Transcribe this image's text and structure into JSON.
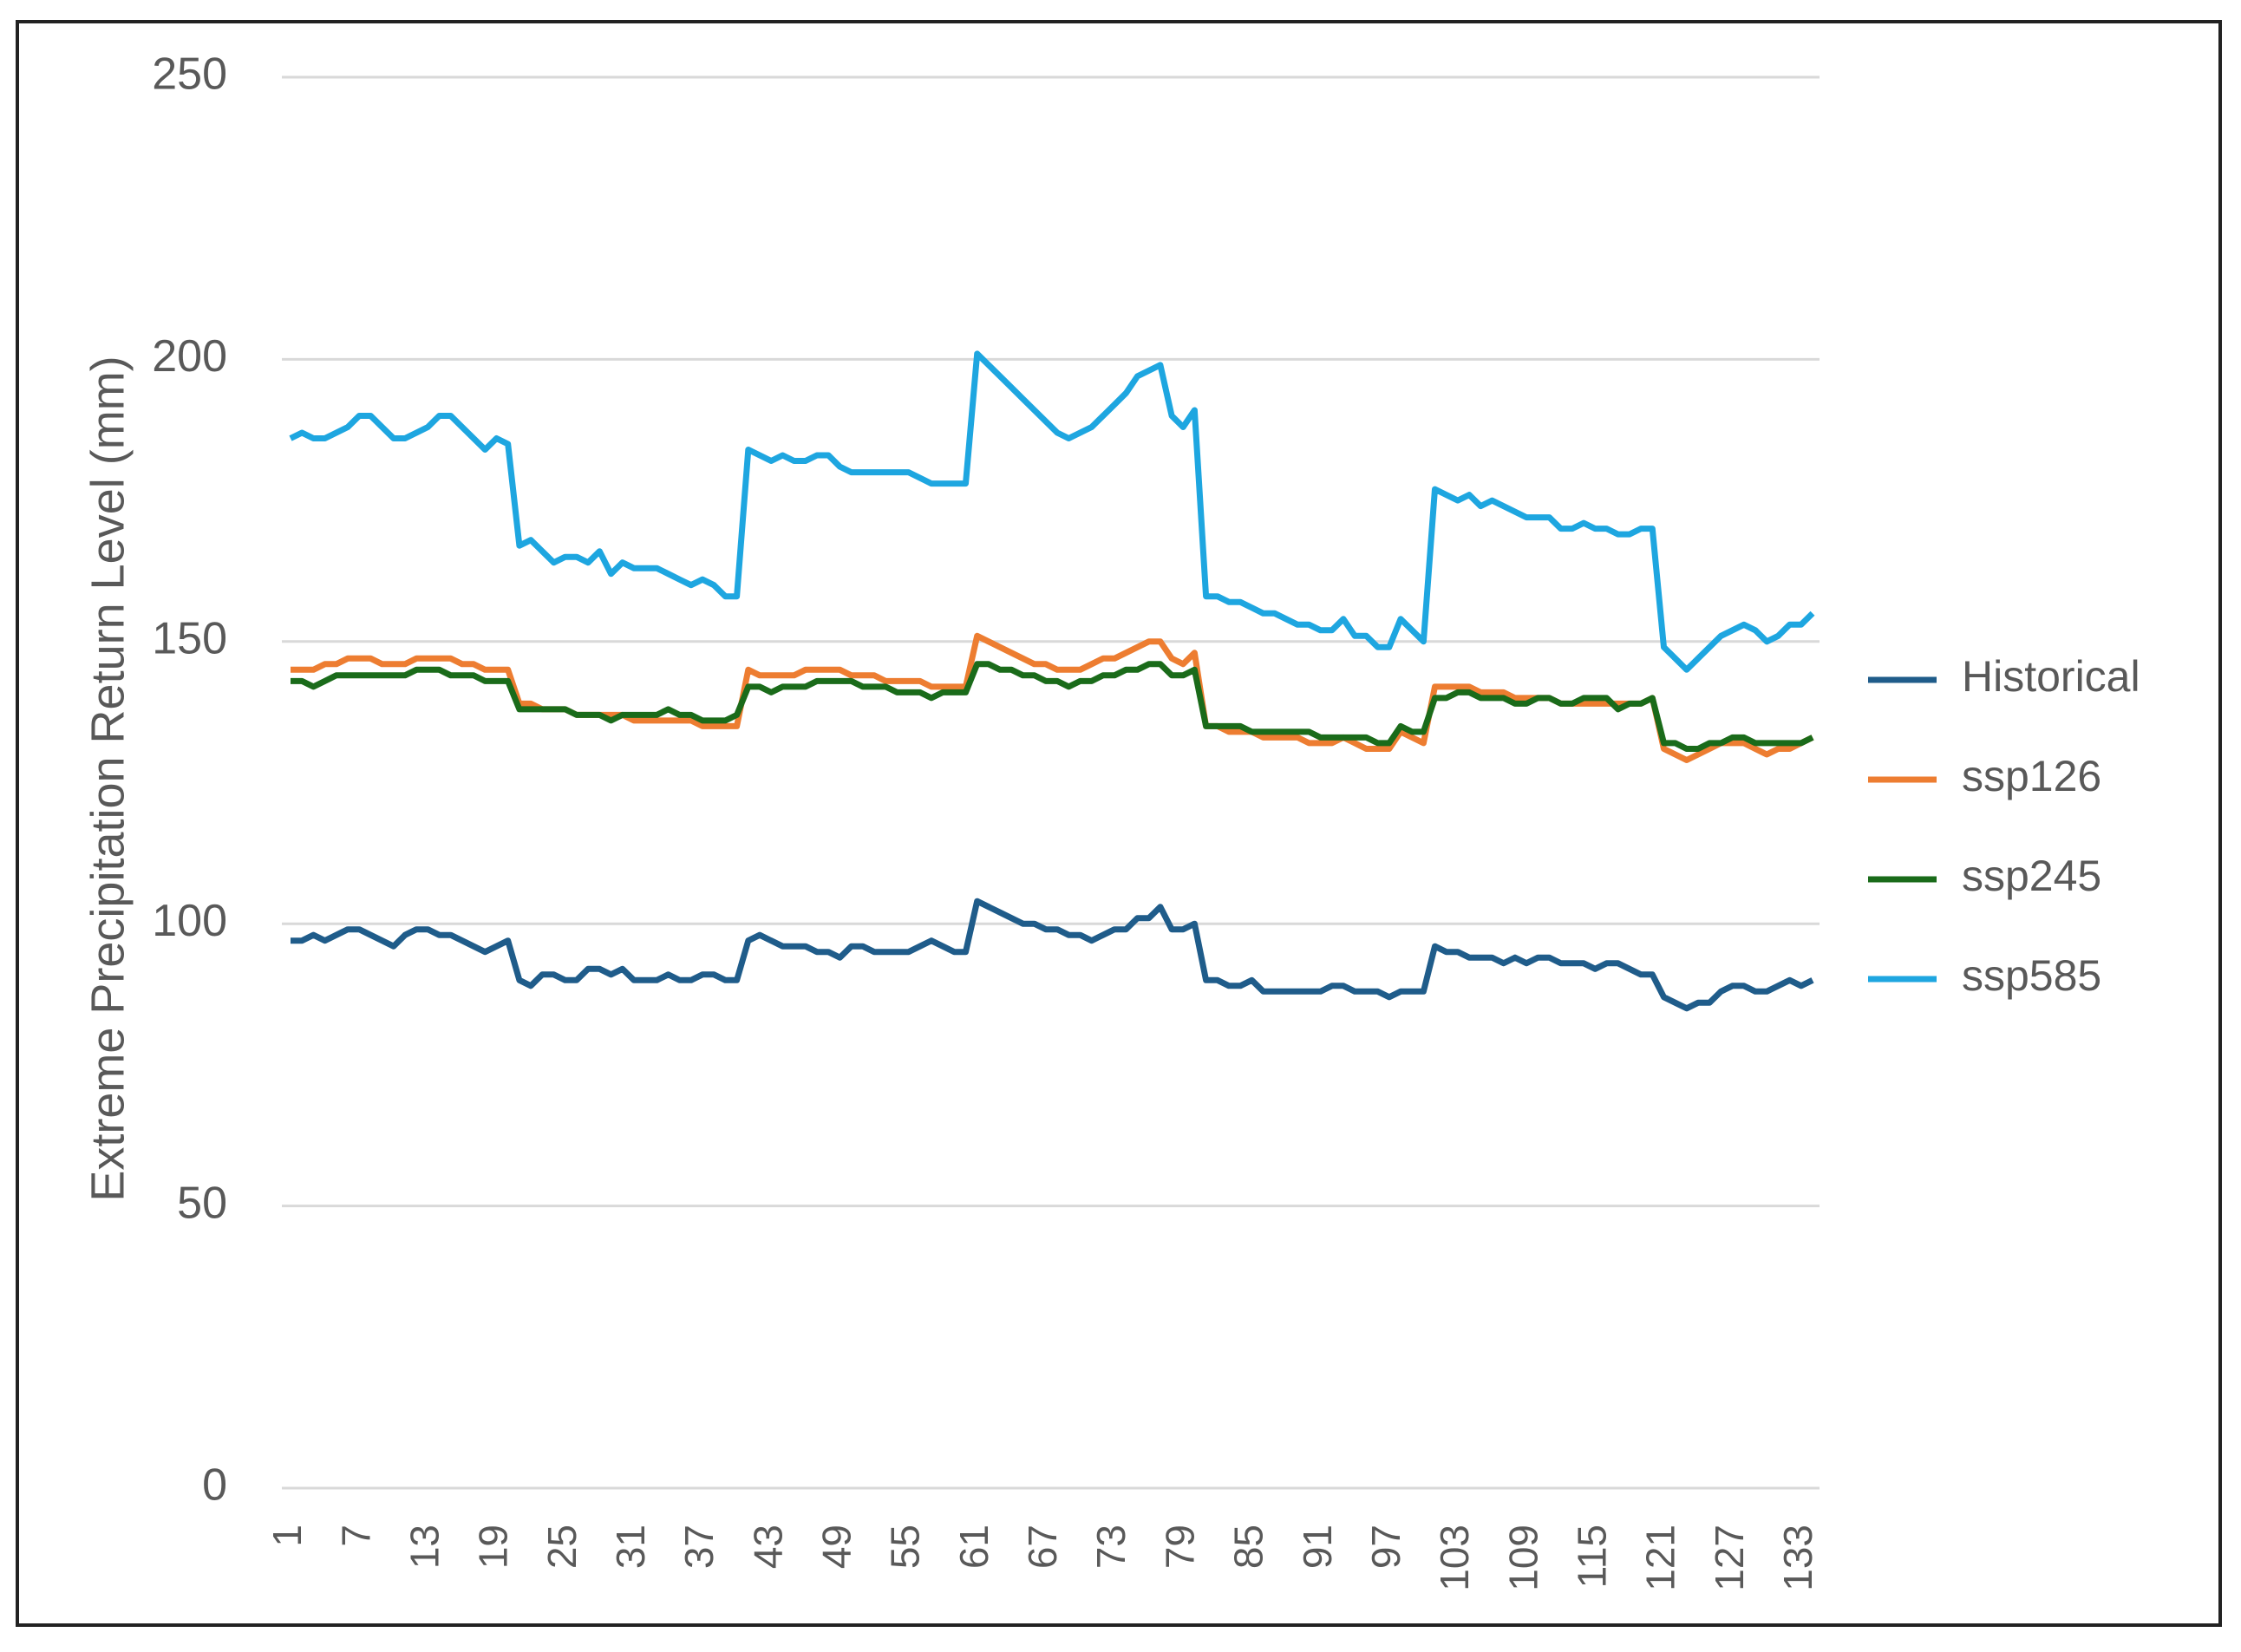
{
  "chart_data": {
    "type": "line",
    "ylabel": "Extreme Precipitation Return Level (mm)",
    "categories": [
      1,
      null,
      null,
      null,
      null,
      null,
      7,
      null,
      null,
      null,
      null,
      null,
      13,
      null,
      null,
      null,
      null,
      null,
      19,
      null,
      null,
      null,
      null,
      null,
      25,
      null,
      null,
      null,
      null,
      null,
      31,
      null,
      null,
      null,
      null,
      null,
      37,
      null,
      null,
      null,
      null,
      null,
      43,
      null,
      null,
      null,
      null,
      null,
      49,
      null,
      null,
      null,
      null,
      null,
      55,
      null,
      null,
      null,
      null,
      null,
      61,
      null,
      null,
      null,
      null,
      null,
      67,
      null,
      null,
      null,
      null,
      null,
      73,
      null,
      null,
      null,
      null,
      null,
      79,
      null,
      null,
      null,
      null,
      null,
      85,
      null,
      null,
      null,
      null,
      null,
      91,
      null,
      null,
      null,
      null,
      null,
      97,
      null,
      null,
      null,
      null,
      null,
      103,
      null,
      null,
      null,
      null,
      null,
      109,
      null,
      null,
      null,
      null,
      null,
      115,
      null,
      null,
      null,
      null,
      null,
      121,
      null,
      null,
      null,
      null,
      null,
      127,
      null,
      null,
      null,
      null,
      null,
      133,
      null
    ],
    "series": [
      {
        "name": "Historical",
        "color": "#1f5c8a",
        "values": [
          97,
          97,
          98,
          97,
          98,
          99,
          99,
          98,
          97,
          96,
          98,
          99,
          99,
          98,
          98,
          97,
          96,
          95,
          96,
          97,
          90,
          89,
          91,
          91,
          90,
          90,
          92,
          92,
          91,
          92,
          90,
          90,
          90,
          91,
          90,
          90,
          91,
          91,
          90,
          90,
          97,
          98,
          97,
          96,
          96,
          96,
          95,
          95,
          94,
          96,
          96,
          95,
          95,
          95,
          95,
          96,
          97,
          96,
          95,
          95,
          104,
          103,
          102,
          101,
          100,
          100,
          99,
          99,
          98,
          98,
          97,
          98,
          99,
          99,
          101,
          101,
          103,
          99,
          99,
          100,
          90,
          90,
          89,
          89,
          90,
          88,
          88,
          88,
          88,
          88,
          88,
          89,
          89,
          88,
          88,
          88,
          87,
          88,
          88,
          88,
          96,
          95,
          95,
          94,
          94,
          94,
          93,
          94,
          93,
          94,
          94,
          93,
          93,
          93,
          92,
          93,
          93,
          92,
          91,
          91,
          87,
          86,
          85,
          86,
          86,
          88,
          89,
          89,
          88,
          88,
          89,
          90,
          89,
          90
        ]
      },
      {
        "name": "ssp126",
        "color": "#ed7d31",
        "values": [
          145,
          145,
          145,
          146,
          146,
          147,
          147,
          147,
          146,
          146,
          146,
          147,
          147,
          147,
          147,
          146,
          146,
          145,
          145,
          145,
          139,
          139,
          138,
          138,
          138,
          137,
          137,
          137,
          137,
          137,
          136,
          136,
          136,
          136,
          136,
          136,
          135,
          135,
          135,
          135,
          145,
          144,
          144,
          144,
          144,
          145,
          145,
          145,
          145,
          144,
          144,
          144,
          143,
          143,
          143,
          143,
          142,
          142,
          142,
          142,
          151,
          150,
          149,
          148,
          147,
          146,
          146,
          145,
          145,
          145,
          146,
          147,
          147,
          148,
          149,
          150,
          150,
          147,
          146,
          148,
          135,
          135,
          134,
          134,
          134,
          133,
          133,
          133,
          133,
          132,
          132,
          132,
          133,
          132,
          131,
          131,
          131,
          134,
          133,
          132,
          142,
          142,
          142,
          142,
          141,
          141,
          141,
          140,
          140,
          140,
          140,
          139,
          139,
          139,
          139,
          139,
          139,
          139,
          139,
          140,
          131,
          130,
          129,
          130,
          131,
          132,
          132,
          132,
          131,
          130,
          131,
          131,
          132,
          133
        ]
      },
      {
        "name": "ssp245",
        "color": "#1a6b1a",
        "values": [
          143,
          143,
          142,
          143,
          144,
          144,
          144,
          144,
          144,
          144,
          144,
          145,
          145,
          145,
          144,
          144,
          144,
          143,
          143,
          143,
          138,
          138,
          138,
          138,
          138,
          137,
          137,
          137,
          136,
          137,
          137,
          137,
          137,
          138,
          137,
          137,
          136,
          136,
          136,
          137,
          142,
          142,
          141,
          142,
          142,
          142,
          143,
          143,
          143,
          143,
          142,
          142,
          142,
          141,
          141,
          141,
          140,
          141,
          141,
          141,
          146,
          146,
          145,
          145,
          144,
          144,
          143,
          143,
          142,
          143,
          143,
          144,
          144,
          145,
          145,
          146,
          146,
          144,
          144,
          145,
          135,
          135,
          135,
          135,
          134,
          134,
          134,
          134,
          134,
          134,
          133,
          133,
          133,
          133,
          133,
          132,
          132,
          135,
          134,
          134,
          140,
          140,
          141,
          141,
          140,
          140,
          140,
          139,
          139,
          140,
          140,
          139,
          139,
          140,
          140,
          140,
          138,
          139,
          139,
          140,
          132,
          132,
          131,
          131,
          132,
          132,
          133,
          133,
          132,
          132,
          132,
          132,
          132,
          133
        ]
      },
      {
        "name": "ssp585",
        "color": "#1ea6e0",
        "values": [
          186,
          187,
          186,
          186,
          187,
          188,
          190,
          190,
          188,
          186,
          186,
          187,
          188,
          190,
          190,
          188,
          186,
          184,
          186,
          185,
          167,
          168,
          166,
          164,
          165,
          165,
          164,
          166,
          162,
          164,
          163,
          163,
          163,
          162,
          161,
          160,
          161,
          160,
          158,
          158,
          184,
          183,
          182,
          183,
          182,
          182,
          183,
          183,
          181,
          180,
          180,
          180,
          180,
          180,
          180,
          179,
          178,
          178,
          178,
          178,
          201,
          199,
          197,
          195,
          193,
          191,
          189,
          187,
          186,
          187,
          188,
          190,
          192,
          194,
          197,
          198,
          199,
          190,
          188,
          191,
          158,
          158,
          157,
          157,
          156,
          155,
          155,
          154,
          153,
          153,
          152,
          152,
          154,
          151,
          151,
          149,
          149,
          154,
          152,
          150,
          177,
          176,
          175,
          176,
          174,
          175,
          174,
          173,
          172,
          172,
          172,
          170,
          170,
          171,
          170,
          170,
          169,
          169,
          170,
          170,
          149,
          147,
          145,
          147,
          149,
          151,
          152,
          153,
          152,
          150,
          151,
          153,
          153,
          155
        ]
      }
    ],
    "ylim": [
      0,
      250
    ],
    "yticks": [
      0,
      50,
      100,
      150,
      200,
      250
    ],
    "grid": true,
    "legend": "right"
  }
}
